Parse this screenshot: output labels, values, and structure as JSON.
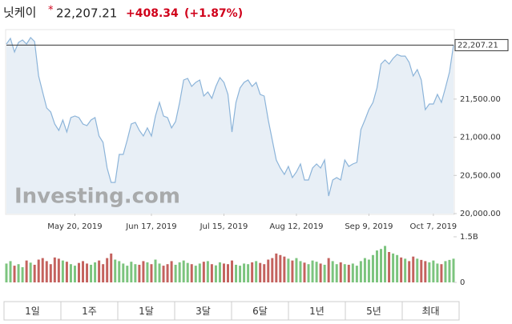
{
  "chart_data": {
    "type": "line",
    "title": "닛케이",
    "last": {
      "value": 22207.21,
      "label": "22,207.21"
    },
    "change": "+408.34",
    "change_pct": "(+1.87%)",
    "watermark": "Investing.com",
    "color": "#8cb4d9",
    "fill": "#e8eff6",
    "values": [
      22222,
      22295,
      22117,
      22243,
      22274,
      22222,
      22306,
      22253,
      21803,
      21593,
      21383,
      21331,
      21174,
      21090,
      21226,
      21069,
      21258,
      21279,
      21258,
      21174,
      21153,
      21226,
      21258,
      21017,
      20933,
      20597,
      20409,
      20409,
      20776,
      20776,
      20964,
      21174,
      21195,
      21090,
      21017,
      21122,
      21017,
      21279,
      21457,
      21279,
      21258,
      21122,
      21205,
      21457,
      21750,
      21771,
      21666,
      21719,
      21750,
      21541,
      21593,
      21509,
      21666,
      21782,
      21719,
      21562,
      21069,
      21457,
      21646,
      21719,
      21750,
      21666,
      21719,
      21562,
      21541,
      21226,
      20964,
      20702,
      20597,
      20514,
      20618,
      20472,
      20545,
      20650,
      20440,
      20440,
      20597,
      20650,
      20597,
      20702,
      20231,
      20440,
      20472,
      20440,
      20702,
      20618,
      20650,
      20671,
      21100,
      21226,
      21362,
      21457,
      21646,
      21960,
      22012,
      21960,
      22033,
      22085,
      22064,
      22064,
      21981,
      21803,
      21886,
      21750,
      21362,
      21436,
      21436,
      21562,
      21457,
      21646,
      21855,
      22207.21
    ],
    "ylim": [
      20000,
      22400
    ],
    "yticks": [
      {
        "value": 20000,
        "label": "20,000.00"
      },
      {
        "value": 20500,
        "label": "20,500.00"
      },
      {
        "value": 21000,
        "label": "21,000.00"
      },
      {
        "value": 21500,
        "label": "21,500.00"
      }
    ],
    "xticks": [
      {
        "value": 17,
        "label": "May 20, 2019"
      },
      {
        "value": 36,
        "label": "Jun 17, 2019"
      },
      {
        "value": 54,
        "label": "Jul 15, 2019"
      },
      {
        "value": 72,
        "label": "Aug 12, 2019"
      },
      {
        "value": 90,
        "label": "Sep 9, 2019"
      },
      {
        "value": 106,
        "label": "Oct 7, 2019"
      }
    ],
    "volume": {
      "up_color": "#7cc47e",
      "down_color": "#c4625e",
      "values": [
        0.62,
        0.7,
        0.55,
        0.6,
        0.5,
        0.72,
        0.65,
        0.58,
        0.75,
        0.8,
        0.7,
        0.6,
        0.82,
        0.78,
        0.72,
        0.68,
        0.6,
        0.55,
        0.64,
        0.7,
        0.62,
        0.58,
        0.66,
        0.72,
        0.6,
        0.8,
        0.95,
        0.75,
        0.7,
        0.62,
        0.55,
        0.68,
        0.6,
        0.58,
        0.7,
        0.66,
        0.6,
        0.75,
        0.62,
        0.55,
        0.6,
        0.7,
        0.58,
        0.66,
        0.72,
        0.64,
        0.6,
        0.55,
        0.62,
        0.68,
        0.7,
        0.6,
        0.56,
        0.66,
        0.62,
        0.6,
        0.72,
        0.58,
        0.55,
        0.62,
        0.6,
        0.66,
        0.7,
        0.64,
        0.6,
        0.75,
        0.8,
        0.95,
        0.9,
        0.85,
        0.78,
        0.72,
        0.8,
        0.7,
        0.65,
        0.6,
        0.72,
        0.68,
        0.62,
        0.58,
        0.8,
        0.7,
        0.6,
        0.66,
        0.6,
        0.58,
        0.62,
        0.55,
        0.7,
        0.8,
        0.75,
        0.9,
        1.05,
        1.1,
        1.2,
        1.0,
        0.95,
        0.9,
        0.82,
        0.78,
        0.7,
        0.85,
        0.78,
        0.74,
        0.7,
        0.66,
        0.72,
        0.62,
        0.6,
        0.7,
        0.74,
        0.78
      ],
      "ylim": [
        0,
        1.5
      ],
      "yticks": [
        0,
        {
          "value": 1.5,
          "label": "1.5B"
        }
      ]
    },
    "tabs": [
      "1일",
      "1주",
      "1달",
      "3달",
      "6달",
      "1년",
      "5년",
      "최대"
    ]
  }
}
